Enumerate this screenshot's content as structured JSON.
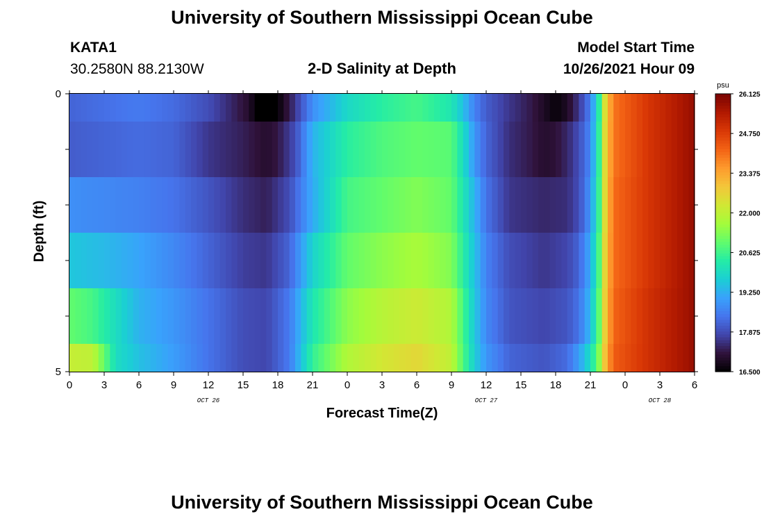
{
  "header": {
    "title": "University of Southern Mississippi Ocean Cube",
    "station_id": "KATA1",
    "coordinates": "30.2580N  88.2130W",
    "plot_title": "2-D Salinity at Depth",
    "model_start_label": "Model Start Time",
    "model_start_value": "10/26/2021 Hour 09"
  },
  "footer": {
    "title": "University of Southern Mississippi Ocean Cube"
  },
  "chart_data": {
    "type": "heatmap",
    "title": "2-D Salinity at Depth",
    "xlabel": "Forecast Time(Z)",
    "ylabel": "Depth (ft)",
    "units": "psu",
    "x_range_hours_from_oct26_00z": [
      0,
      54
    ],
    "y_range_ft": [
      0,
      5
    ],
    "y_tick_labels": [
      "0",
      "5"
    ],
    "x_tick_labels": [
      "0",
      "3",
      "6",
      "9",
      "12",
      "15",
      "18",
      "21",
      "0",
      "3",
      "6",
      "9",
      "12",
      "15",
      "18",
      "21",
      "0",
      "3",
      "6"
    ],
    "date_labels": [
      {
        "text": "OCT 26",
        "hour": 12
      },
      {
        "text": "OCT 27",
        "hour": 36
      },
      {
        "text": "OCT 28",
        "hour": 51
      }
    ],
    "colorbar": {
      "min": 16.5,
      "max": 26.125,
      "tick_labels": [
        "26.125",
        "24.750",
        "23.375",
        "22.000",
        "20.625",
        "19.250",
        "17.875",
        "16.500"
      ],
      "tick_values": [
        26.125,
        24.75,
        23.375,
        22.0,
        20.625,
        19.25,
        17.875,
        16.5
      ],
      "colors": [
        "#000000",
        "#30123b",
        "#4145ab",
        "#4675ed",
        "#39a2fc",
        "#1bcfd4",
        "#24eca6",
        "#61fc6c",
        "#a4fc3b",
        "#d1e834",
        "#f3c63a",
        "#fe9b2d",
        "#f36315",
        "#d93806",
        "#b11901",
        "#7a0402"
      ]
    },
    "layers": [
      {
        "depth_top_ft": 0.0,
        "depth_bottom_ft": 0.5,
        "keys": [
          [
            0,
            18.2
          ],
          [
            6,
            18.5
          ],
          [
            9,
            18.3
          ],
          [
            12,
            17.9
          ],
          [
            14,
            17.4
          ],
          [
            15.5,
            17.0
          ],
          [
            16.5,
            16.2
          ],
          [
            17.5,
            16.2
          ],
          [
            18.5,
            16.9
          ],
          [
            19.5,
            17.6
          ],
          [
            21,
            18.8
          ],
          [
            24,
            19.9
          ],
          [
            27,
            20.4
          ],
          [
            30,
            20.7
          ],
          [
            33,
            20.2
          ],
          [
            34,
            19.5
          ],
          [
            35,
            18.6
          ],
          [
            36,
            18.1
          ],
          [
            38,
            17.6
          ],
          [
            40,
            17.2
          ],
          [
            41,
            16.9
          ],
          [
            42,
            16.6
          ],
          [
            43,
            16.9
          ],
          [
            44,
            17.6
          ],
          [
            45,
            18.6
          ],
          [
            45.7,
            20.2
          ],
          [
            46.3,
            22.6
          ],
          [
            47,
            24.0
          ],
          [
            50,
            24.9
          ],
          [
            54,
            25.8
          ]
        ]
      },
      {
        "depth_top_ft": 0.5,
        "depth_bottom_ft": 1.5,
        "keys": [
          [
            0,
            18.1
          ],
          [
            6,
            18.3
          ],
          [
            9,
            18.2
          ],
          [
            12,
            17.6
          ],
          [
            15,
            17.3
          ],
          [
            17,
            17.0
          ],
          [
            18,
            17.2
          ],
          [
            19.5,
            17.9
          ],
          [
            21,
            19.3
          ],
          [
            24,
            20.4
          ],
          [
            27,
            20.8
          ],
          [
            30,
            21.0
          ],
          [
            33,
            20.9
          ],
          [
            34,
            20.0
          ],
          [
            35,
            18.9
          ],
          [
            36,
            18.2
          ],
          [
            38,
            17.5
          ],
          [
            40,
            17.2
          ],
          [
            41,
            17.0
          ],
          [
            42,
            17.1
          ],
          [
            43,
            17.4
          ],
          [
            44,
            17.9
          ],
          [
            45,
            18.7
          ],
          [
            45.7,
            20.3
          ],
          [
            46.3,
            22.7
          ],
          [
            47,
            24.0
          ],
          [
            50,
            24.9
          ],
          [
            54,
            25.8
          ]
        ]
      },
      {
        "depth_top_ft": 1.5,
        "depth_bottom_ft": 2.5,
        "keys": [
          [
            0,
            18.8
          ],
          [
            3,
            18.7
          ],
          [
            6,
            18.6
          ],
          [
            9,
            18.4
          ],
          [
            12,
            18.0
          ],
          [
            15,
            17.5
          ],
          [
            17,
            17.3
          ],
          [
            19,
            17.9
          ],
          [
            21,
            19.2
          ],
          [
            24,
            20.7
          ],
          [
            27,
            21.0
          ],
          [
            30,
            21.3
          ],
          [
            33,
            21.0
          ],
          [
            34,
            20.2
          ],
          [
            35,
            19.3
          ],
          [
            36,
            18.4
          ],
          [
            38,
            17.6
          ],
          [
            41,
            17.4
          ],
          [
            43,
            17.5
          ],
          [
            44,
            17.9
          ],
          [
            45,
            18.9
          ],
          [
            45.7,
            20.4
          ],
          [
            46.3,
            22.7
          ],
          [
            47,
            24.1
          ],
          [
            50,
            24.9
          ],
          [
            54,
            25.8
          ]
        ]
      },
      {
        "depth_top_ft": 2.5,
        "depth_bottom_ft": 3.5,
        "keys": [
          [
            0,
            19.6
          ],
          [
            3,
            19.4
          ],
          [
            6,
            19.1
          ],
          [
            9,
            18.7
          ],
          [
            12,
            18.2
          ],
          [
            15,
            17.7
          ],
          [
            17,
            17.6
          ],
          [
            19,
            18.2
          ],
          [
            21,
            19.8
          ],
          [
            24,
            21.0
          ],
          [
            27,
            21.4
          ],
          [
            30,
            21.7
          ],
          [
            33,
            21.3
          ],
          [
            34,
            20.4
          ],
          [
            35,
            19.5
          ],
          [
            36,
            18.6
          ],
          [
            38,
            17.9
          ],
          [
            41,
            17.6
          ],
          [
            43,
            17.8
          ],
          [
            44,
            18.2
          ],
          [
            45,
            19.2
          ],
          [
            45.7,
            20.6
          ],
          [
            46.3,
            22.8
          ],
          [
            47,
            24.1
          ],
          [
            50,
            24.9
          ],
          [
            54,
            25.8
          ]
        ]
      },
      {
        "depth_top_ft": 3.5,
        "depth_bottom_ft": 4.5,
        "keys": [
          [
            0,
            21.0
          ],
          [
            2,
            20.7
          ],
          [
            4,
            20.0
          ],
          [
            6,
            19.3
          ],
          [
            9,
            18.9
          ],
          [
            12,
            18.4
          ],
          [
            15,
            17.9
          ],
          [
            17,
            17.8
          ],
          [
            19,
            18.5
          ],
          [
            21,
            20.2
          ],
          [
            24,
            21.4
          ],
          [
            27,
            21.9
          ],
          [
            30,
            22.2
          ],
          [
            33,
            21.8
          ],
          [
            34,
            20.7
          ],
          [
            35,
            19.6
          ],
          [
            36,
            18.7
          ],
          [
            38,
            18.0
          ],
          [
            41,
            17.8
          ],
          [
            43,
            18.0
          ],
          [
            44,
            18.4
          ],
          [
            45,
            19.4
          ],
          [
            45.7,
            20.8
          ],
          [
            46.3,
            22.9
          ],
          [
            47,
            24.2
          ],
          [
            50,
            25.0
          ],
          [
            54,
            25.8
          ]
        ]
      },
      {
        "depth_top_ft": 4.5,
        "depth_bottom_ft": 5.0,
        "keys": [
          [
            0,
            22.1
          ],
          [
            2,
            22.0
          ],
          [
            3,
            21.0
          ],
          [
            4,
            20.0
          ],
          [
            6,
            19.5
          ],
          [
            9,
            19.0
          ],
          [
            12,
            18.4
          ],
          [
            15,
            17.9
          ],
          [
            17,
            17.8
          ],
          [
            19,
            18.5
          ],
          [
            21,
            20.5
          ],
          [
            24,
            21.8
          ],
          [
            27,
            22.3
          ],
          [
            30,
            22.6
          ],
          [
            33,
            22.0
          ],
          [
            34,
            20.8
          ],
          [
            35,
            19.7
          ],
          [
            36,
            18.9
          ],
          [
            38,
            18.2
          ],
          [
            41,
            18.0
          ],
          [
            43,
            18.3
          ],
          [
            44,
            19.0
          ],
          [
            45,
            20.0
          ],
          [
            45.7,
            21.2
          ],
          [
            46.3,
            23.1
          ],
          [
            47,
            24.3
          ],
          [
            50,
            25.0
          ],
          [
            54,
            25.8
          ]
        ]
      }
    ]
  }
}
